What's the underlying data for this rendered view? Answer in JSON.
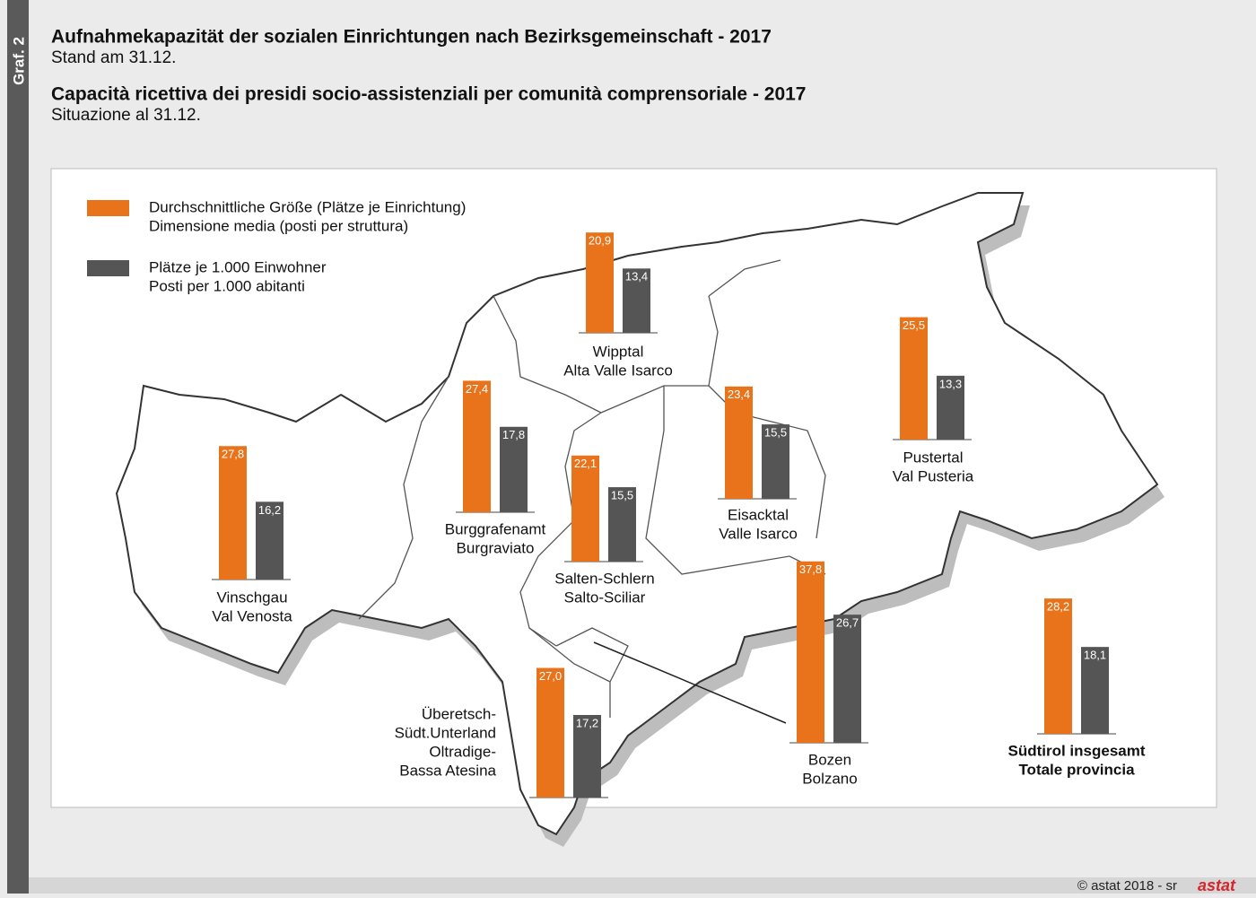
{
  "side_label": "Graf. 2",
  "title_de": "Aufnahmekapazität der sozialen Einrichtungen nach Bezirksgemeinschaft - 2017",
  "subtitle_de": "Stand am 31.12.",
  "title_it": "Capacità ricettiva dei presidi socio-assistenziali per comunità comprensoriale - 2017",
  "subtitle_it": "Situazione al 31.12.",
  "legend": [
    {
      "label_de": "Durchschnittliche Größe (Plätze je Einrichtung)",
      "label_it": "Dimensione media (posti per struttura)",
      "color": "#e8731a"
    },
    {
      "label_de": "Plätze je 1.000 Einwohner",
      "label_it": "Posti per 1.000 abitanti",
      "color": "#555555"
    }
  ],
  "regions": [
    {
      "name_lines": [
        "Wipptal",
        "Alta Valle Isarco"
      ],
      "values": [
        20.9,
        13.4
      ],
      "value_labels": [
        "20,9",
        "13,4"
      ]
    },
    {
      "name_lines": [
        "Burggrafenamt",
        "Burgraviato"
      ],
      "values": [
        27.4,
        17.8
      ],
      "value_labels": [
        "27,4",
        "17,8"
      ]
    },
    {
      "name_lines": [
        "Vinschgau",
        "Val Venosta"
      ],
      "values": [
        27.8,
        16.2
      ],
      "value_labels": [
        "27,8",
        "16,2"
      ]
    },
    {
      "name_lines": [
        "Salten-Schlern",
        "Salto-Sciliar"
      ],
      "values": [
        22.1,
        15.5
      ],
      "value_labels": [
        "22,1",
        "15,5"
      ]
    },
    {
      "name_lines": [
        "Eisacktal",
        "Valle Isarco"
      ],
      "values": [
        23.4,
        15.5
      ],
      "value_labels": [
        "23,4",
        "15,5"
      ]
    },
    {
      "name_lines": [
        "Pustertal",
        "Val Pusteria"
      ],
      "values": [
        25.5,
        13.3
      ],
      "value_labels": [
        "25,5",
        "13,3"
      ]
    },
    {
      "name_lines": [
        "Bozen",
        "Bolzano"
      ],
      "values": [
        37.8,
        26.7
      ],
      "value_labels": [
        "37,8",
        "26,7"
      ]
    },
    {
      "name_lines": [
        "Überetsch-",
        "Südt.Unterland",
        "Oltradige-",
        "Bassa Atesina"
      ],
      "values": [
        27.0,
        17.2
      ],
      "value_labels": [
        "27,0",
        "17,2"
      ]
    },
    {
      "name_lines": [
        "Südtirol insgesamt",
        "Totale provincia"
      ],
      "values": [
        28.2,
        18.1
      ],
      "value_labels": [
        "28,2",
        "18,1"
      ]
    }
  ],
  "footer": "© astat 2018 - sr",
  "logo": "astat"
}
